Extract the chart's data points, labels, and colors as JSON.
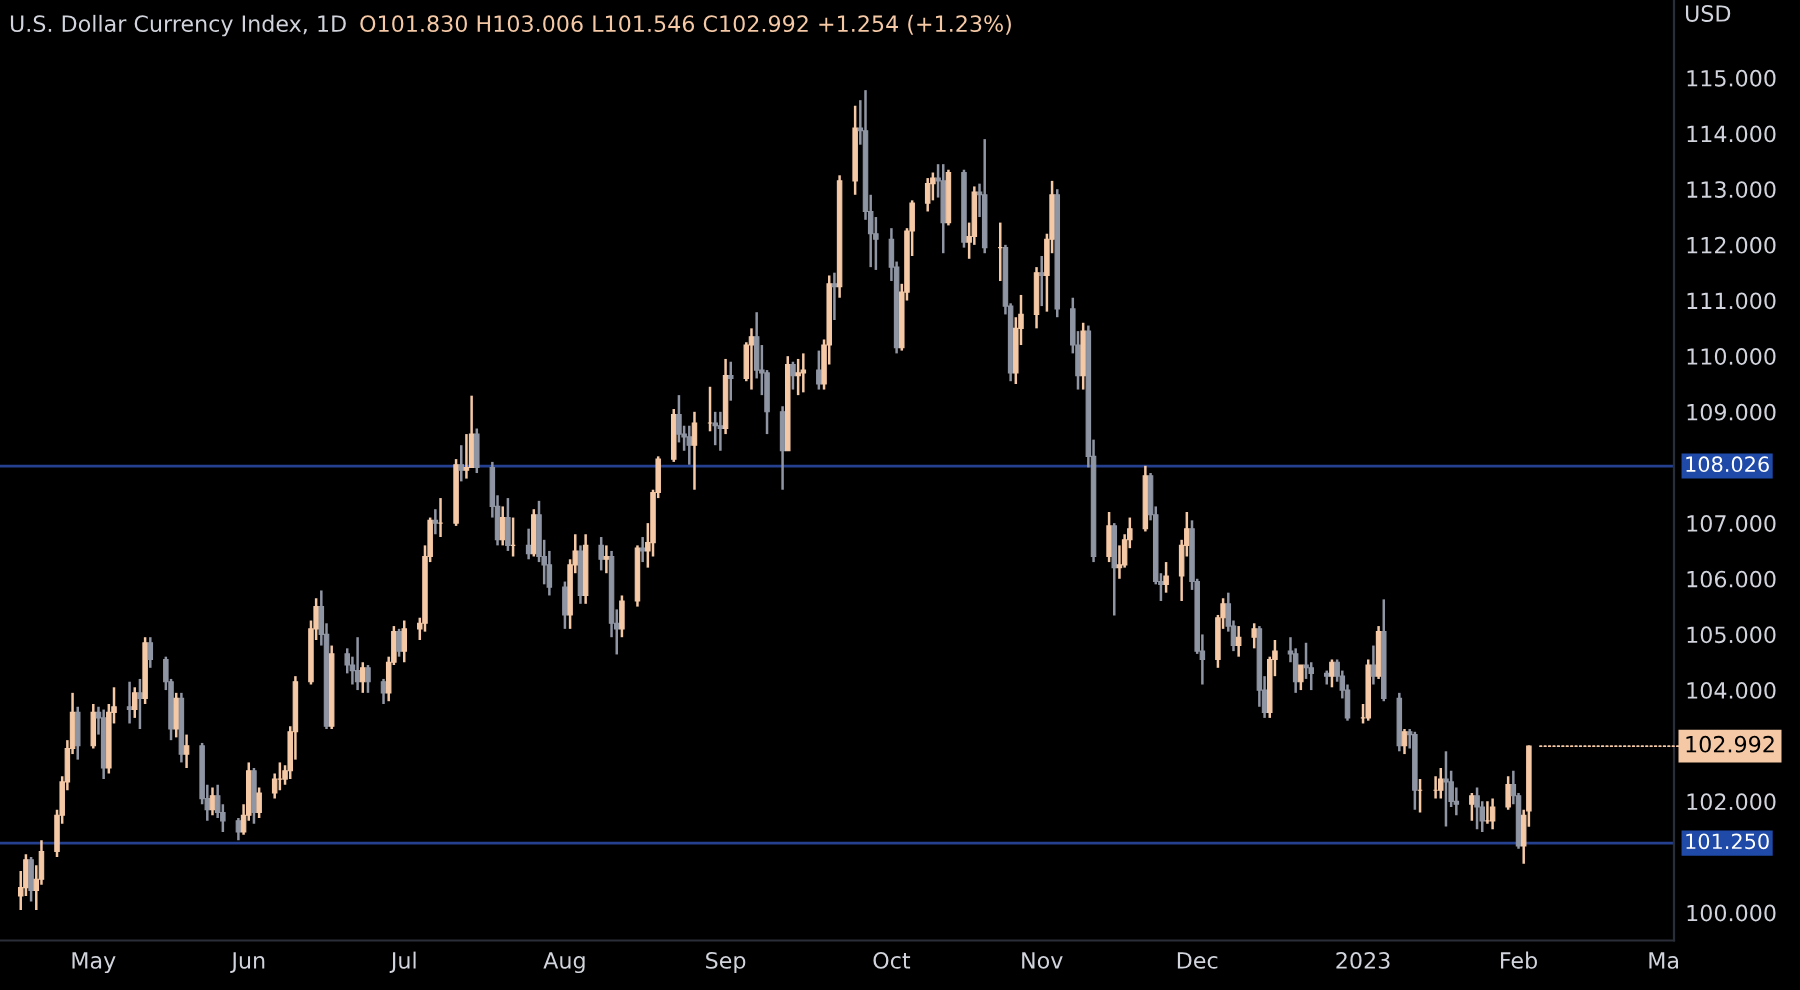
{
  "chart_data": {
    "type": "candlestick",
    "title": "U.S. Dollar Currency Index, 1D",
    "subtitle": "O101.830 H103.006 L101.546 C102.992 +1.254 (+1.23%)",
    "ylabel": "USD",
    "x": [
      "2022-04-18",
      "2022-04-19",
      "2022-04-20",
      "2022-04-21",
      "2022-04-22",
      "2022-04-25",
      "2022-04-26",
      "2022-04-27",
      "2022-04-28",
      "2022-04-29",
      "2022-05-02",
      "2022-05-03",
      "2022-05-04",
      "2022-05-05",
      "2022-05-06",
      "2022-05-09",
      "2022-05-10",
      "2022-05-11",
      "2022-05-12",
      "2022-05-13",
      "2022-05-16",
      "2022-05-17",
      "2022-05-18",
      "2022-05-19",
      "2022-05-20",
      "2022-05-23",
      "2022-05-24",
      "2022-05-25",
      "2022-05-26",
      "2022-05-27",
      "2022-05-30",
      "2022-05-31",
      "2022-06-01",
      "2022-06-02",
      "2022-06-03",
      "2022-06-06",
      "2022-06-07",
      "2022-06-08",
      "2022-06-09",
      "2022-06-10",
      "2022-06-13",
      "2022-06-14",
      "2022-06-15",
      "2022-06-16",
      "2022-06-17",
      "2022-06-20",
      "2022-06-21",
      "2022-06-22",
      "2022-06-23",
      "2022-06-24",
      "2022-06-27",
      "2022-06-28",
      "2022-06-29",
      "2022-06-30",
      "2022-07-01",
      "2022-07-04",
      "2022-07-05",
      "2022-07-06",
      "2022-07-07",
      "2022-07-08",
      "2022-07-11",
      "2022-07-12",
      "2022-07-13",
      "2022-07-14",
      "2022-07-15",
      "2022-07-18",
      "2022-07-19",
      "2022-07-20",
      "2022-07-21",
      "2022-07-22",
      "2022-07-25",
      "2022-07-26",
      "2022-07-27",
      "2022-07-28",
      "2022-07-29",
      "2022-08-01",
      "2022-08-02",
      "2022-08-03",
      "2022-08-04",
      "2022-08-05",
      "2022-08-08",
      "2022-08-09",
      "2022-08-10",
      "2022-08-11",
      "2022-08-12",
      "2022-08-15",
      "2022-08-16",
      "2022-08-17",
      "2022-08-18",
      "2022-08-19",
      "2022-08-22",
      "2022-08-23",
      "2022-08-24",
      "2022-08-25",
      "2022-08-26",
      "2022-08-29",
      "2022-08-30",
      "2022-08-31",
      "2022-09-01",
      "2022-09-02",
      "2022-09-05",
      "2022-09-06",
      "2022-09-07",
      "2022-09-08",
      "2022-09-09",
      "2022-09-12",
      "2022-09-13",
      "2022-09-14",
      "2022-09-15",
      "2022-09-16",
      "2022-09-19",
      "2022-09-20",
      "2022-09-21",
      "2022-09-22",
      "2022-09-23",
      "2022-09-26",
      "2022-09-27",
      "2022-09-28",
      "2022-09-29",
      "2022-09-30",
      "2022-10-03",
      "2022-10-04",
      "2022-10-05",
      "2022-10-06",
      "2022-10-07",
      "2022-10-10",
      "2022-10-11",
      "2022-10-12",
      "2022-10-13",
      "2022-10-14",
      "2022-10-17",
      "2022-10-18",
      "2022-10-19",
      "2022-10-20",
      "2022-10-21",
      "2022-10-24",
      "2022-10-25",
      "2022-10-26",
      "2022-10-27",
      "2022-10-28",
      "2022-10-31",
      "2022-11-01",
      "2022-11-02",
      "2022-11-03",
      "2022-11-04",
      "2022-11-07",
      "2022-11-08",
      "2022-11-09",
      "2022-11-10",
      "2022-11-11",
      "2022-11-14",
      "2022-11-15",
      "2022-11-16",
      "2022-11-17",
      "2022-11-18",
      "2022-11-21",
      "2022-11-22",
      "2022-11-23",
      "2022-11-24",
      "2022-11-25",
      "2022-11-28",
      "2022-11-29",
      "2022-11-30",
      "2022-12-01",
      "2022-12-02",
      "2022-12-05",
      "2022-12-06",
      "2022-12-07",
      "2022-12-08",
      "2022-12-09",
      "2022-12-12",
      "2022-12-13",
      "2022-12-14",
      "2022-12-15",
      "2022-12-16",
      "2022-12-19",
      "2022-12-20",
      "2022-12-21",
      "2022-12-22",
      "2022-12-23",
      "2022-12-26",
      "2022-12-27",
      "2022-12-28",
      "2022-12-29",
      "2022-12-30",
      "2023-01-02",
      "2023-01-03",
      "2023-01-04",
      "2023-01-05",
      "2023-01-06",
      "2023-01-09",
      "2023-01-10",
      "2023-01-11",
      "2023-01-12",
      "2023-01-13",
      "2023-01-16",
      "2023-01-17",
      "2023-01-18",
      "2023-01-19",
      "2023-01-20",
      "2023-01-23",
      "2023-01-24",
      "2023-01-25",
      "2023-01-26",
      "2023-01-27",
      "2023-01-30",
      "2023-01-31",
      "2023-02-01",
      "2023-02-02",
      "2023-02-03"
    ],
    "ohlc": [
      [
        100.3,
        100.75,
        100.05,
        100.45
      ],
      [
        100.45,
        101.05,
        100.3,
        100.95
      ],
      [
        100.95,
        101.0,
        100.2,
        100.4
      ],
      [
        100.4,
        100.85,
        100.05,
        100.6
      ],
      [
        100.6,
        101.3,
        100.5,
        101.1
      ],
      [
        101.1,
        101.85,
        101.0,
        101.75
      ],
      [
        101.75,
        102.45,
        101.6,
        102.35
      ],
      [
        102.35,
        103.1,
        102.2,
        102.95
      ],
      [
        102.95,
        103.95,
        102.85,
        103.6
      ],
      [
        103.6,
        103.7,
        102.75,
        103.0
      ],
      [
        103.0,
        103.75,
        102.95,
        103.6
      ],
      [
        103.6,
        103.7,
        103.2,
        103.5
      ],
      [
        103.5,
        103.65,
        102.4,
        102.6
      ],
      [
        102.6,
        103.75,
        102.5,
        103.6
      ],
      [
        103.6,
        104.05,
        103.4,
        103.7
      ],
      [
        103.7,
        104.15,
        103.4,
        103.65
      ],
      [
        103.65,
        104.05,
        103.5,
        103.95
      ],
      [
        103.95,
        104.2,
        103.3,
        103.85
      ],
      [
        103.85,
        104.95,
        103.75,
        104.85
      ],
      [
        104.85,
        104.95,
        104.4,
        104.55
      ],
      [
        104.55,
        104.6,
        104.0,
        104.15
      ],
      [
        104.15,
        104.2,
        103.1,
        103.3
      ],
      [
        103.3,
        103.95,
        103.15,
        103.85
      ],
      [
        103.85,
        103.95,
        102.7,
        102.85
      ],
      [
        102.85,
        103.2,
        102.6,
        103.0
      ],
      [
        103.0,
        103.05,
        101.95,
        102.05
      ],
      [
        102.05,
        102.3,
        101.65,
        101.85
      ],
      [
        101.85,
        102.25,
        101.75,
        102.1
      ],
      [
        102.1,
        102.3,
        101.7,
        101.8
      ],
      [
        101.8,
        101.95,
        101.45,
        101.65
      ],
      [
        101.65,
        101.7,
        101.3,
        101.45
      ],
      [
        101.45,
        101.95,
        101.4,
        101.75
      ],
      [
        101.75,
        102.7,
        101.65,
        102.55
      ],
      [
        102.55,
        102.6,
        101.6,
        101.8
      ],
      [
        101.8,
        102.25,
        101.7,
        102.15
      ],
      [
        102.15,
        102.5,
        102.05,
        102.4
      ],
      [
        102.4,
        102.7,
        102.2,
        102.4
      ],
      [
        102.4,
        102.65,
        102.3,
        102.55
      ],
      [
        102.55,
        103.35,
        102.4,
        103.25
      ],
      [
        103.25,
        104.25,
        102.75,
        104.15
      ],
      [
        104.15,
        105.25,
        104.1,
        105.1
      ],
      [
        105.1,
        105.65,
        104.9,
        105.5
      ],
      [
        105.5,
        105.79,
        104.8,
        105.0
      ],
      [
        105.0,
        105.2,
        103.3,
        103.35
      ],
      [
        103.35,
        104.8,
        103.3,
        104.65
      ],
      [
        104.65,
        104.75,
        104.3,
        104.45
      ],
      [
        104.45,
        104.6,
        104.1,
        104.35
      ],
      [
        104.35,
        104.95,
        104.0,
        104.15
      ],
      [
        104.15,
        104.5,
        103.95,
        104.4
      ],
      [
        104.4,
        104.45,
        103.95,
        104.15
      ],
      [
        104.15,
        104.2,
        103.75,
        103.95
      ],
      [
        103.95,
        104.6,
        103.8,
        104.5
      ],
      [
        104.5,
        105.15,
        104.45,
        105.05
      ],
      [
        105.05,
        105.1,
        104.6,
        104.7
      ],
      [
        104.7,
        105.25,
        104.5,
        105.1
      ],
      [
        105.1,
        105.3,
        104.9,
        105.2
      ],
      [
        105.2,
        106.6,
        105.05,
        106.4
      ],
      [
        106.4,
        107.1,
        106.3,
        107.05
      ],
      [
        107.05,
        107.25,
        106.8,
        107.0
      ],
      [
        107.0,
        107.45,
        106.75,
        107.0
      ],
      [
        107.0,
        108.15,
        106.95,
        108.05
      ],
      [
        108.05,
        108.4,
        107.75,
        107.95
      ],
      [
        107.95,
        108.6,
        107.8,
        108.0
      ],
      [
        108.0,
        109.29,
        108.0,
        108.6
      ],
      [
        108.6,
        108.7,
        107.9,
        108.0
      ],
      [
        108.0,
        108.1,
        107.1,
        107.3
      ],
      [
        107.3,
        107.5,
        106.6,
        106.7
      ],
      [
        106.7,
        107.3,
        106.6,
        107.1
      ],
      [
        107.1,
        107.45,
        106.5,
        106.6
      ],
      [
        106.6,
        107.1,
        106.4,
        106.6
      ],
      [
        106.6,
        106.9,
        106.35,
        106.45
      ],
      [
        106.45,
        107.25,
        106.4,
        107.15
      ],
      [
        107.15,
        107.4,
        106.3,
        106.4
      ],
      [
        106.4,
        106.7,
        105.9,
        106.25
      ],
      [
        106.25,
        106.5,
        105.7,
        105.85
      ],
      [
        105.85,
        105.95,
        105.1,
        105.35
      ],
      [
        105.35,
        106.35,
        105.1,
        106.25
      ],
      [
        106.25,
        106.8,
        106.1,
        106.5
      ],
      [
        106.5,
        106.6,
        105.55,
        105.7
      ],
      [
        105.7,
        106.8,
        105.55,
        106.6
      ],
      [
        106.6,
        106.75,
        106.15,
        106.35
      ],
      [
        106.35,
        106.6,
        106.1,
        106.4
      ],
      [
        106.4,
        106.5,
        104.95,
        105.2
      ],
      [
        105.2,
        105.45,
        104.64,
        105.1
      ],
      [
        105.1,
        105.7,
        104.95,
        105.6
      ],
      [
        105.6,
        106.6,
        105.5,
        106.55
      ],
      [
        106.55,
        106.75,
        106.3,
        106.5
      ],
      [
        106.5,
        107.0,
        106.2,
        106.65
      ],
      [
        106.65,
        107.6,
        106.4,
        107.55
      ],
      [
        107.55,
        108.2,
        107.45,
        108.15
      ],
      [
        108.15,
        109.05,
        108.1,
        108.95
      ],
      [
        108.95,
        109.3,
        108.45,
        108.6
      ],
      [
        108.6,
        108.75,
        108.3,
        108.55
      ],
      [
        108.55,
        108.75,
        108.05,
        108.4
      ],
      [
        108.4,
        109.0,
        107.6,
        108.8
      ],
      [
        108.8,
        109.45,
        108.65,
        108.8
      ],
      [
        108.8,
        109.0,
        108.4,
        108.75
      ],
      [
        108.75,
        109.0,
        108.3,
        108.7
      ],
      [
        108.7,
        109.95,
        108.6,
        109.65
      ],
      [
        109.65,
        109.9,
        109.2,
        109.6
      ],
      [
        109.6,
        110.25,
        109.55,
        110.2
      ],
      [
        110.2,
        110.5,
        109.4,
        110.35
      ],
      [
        110.35,
        110.79,
        109.6,
        109.75
      ],
      [
        109.75,
        110.2,
        109.3,
        109.7
      ],
      [
        109.7,
        109.75,
        108.6,
        109.0
      ],
      [
        109.0,
        109.1,
        107.6,
        108.3
      ],
      [
        108.3,
        110.0,
        108.3,
        109.85
      ],
      [
        109.85,
        109.9,
        109.4,
        109.65
      ],
      [
        109.65,
        109.95,
        109.3,
        109.7
      ],
      [
        109.7,
        110.05,
        109.35,
        109.75
      ],
      [
        109.75,
        110.1,
        109.4,
        109.5
      ],
      [
        109.5,
        110.3,
        109.4,
        110.2
      ],
      [
        110.2,
        111.45,
        109.85,
        111.3
      ],
      [
        111.3,
        111.5,
        110.65,
        111.25
      ],
      [
        111.25,
        113.25,
        111.05,
        113.15
      ],
      [
        113.15,
        114.5,
        112.9,
        114.1
      ],
      [
        114.1,
        114.6,
        113.8,
        114.05
      ],
      [
        114.05,
        114.78,
        112.45,
        112.6
      ],
      [
        112.6,
        112.9,
        111.6,
        112.2
      ],
      [
        112.2,
        112.5,
        111.55,
        112.1
      ],
      [
        112.1,
        112.3,
        111.35,
        111.6
      ],
      [
        111.6,
        111.7,
        110.05,
        110.15
      ],
      [
        110.15,
        111.3,
        110.1,
        111.15
      ],
      [
        111.15,
        112.3,
        111.0,
        112.25
      ],
      [
        112.25,
        112.8,
        111.8,
        112.75
      ],
      [
        112.75,
        113.2,
        112.6,
        113.1
      ],
      [
        113.1,
        113.3,
        112.8,
        113.2
      ],
      [
        113.2,
        113.45,
        112.85,
        113.15
      ],
      [
        113.15,
        113.45,
        111.85,
        112.4
      ],
      [
        112.4,
        113.35,
        112.35,
        113.3
      ],
      [
        113.3,
        113.35,
        111.95,
        112.05
      ],
      [
        112.05,
        112.4,
        111.75,
        112.15
      ],
      [
        112.15,
        113.05,
        112.0,
        112.95
      ],
      [
        112.95,
        113.1,
        112.5,
        112.9
      ],
      [
        112.9,
        113.9,
        111.85,
        111.95
      ],
      [
        111.95,
        112.4,
        111.35,
        111.95
      ],
      [
        111.95,
        112.0,
        110.75,
        110.9
      ],
      [
        110.9,
        110.95,
        109.55,
        109.7
      ],
      [
        109.7,
        110.7,
        109.5,
        110.5
      ],
      [
        110.5,
        111.1,
        110.2,
        110.75
      ],
      [
        110.75,
        111.6,
        110.5,
        111.5
      ],
      [
        111.5,
        111.8,
        110.9,
        111.45
      ],
      [
        111.45,
        112.2,
        110.8,
        112.1
      ],
      [
        112.1,
        113.15,
        111.85,
        112.9
      ],
      [
        112.9,
        113.0,
        110.7,
        110.85
      ],
      [
        110.85,
        111.05,
        110.05,
        110.2
      ],
      [
        110.2,
        110.45,
        109.4,
        109.65
      ],
      [
        109.65,
        110.6,
        109.4,
        110.45
      ],
      [
        110.45,
        110.55,
        108.0,
        108.2
      ],
      [
        108.2,
        108.5,
        106.3,
        106.4
      ],
      [
        106.4,
        107.2,
        106.3,
        106.95
      ],
      [
        106.95,
        107.0,
        105.34,
        106.2
      ],
      [
        106.2,
        106.6,
        106.0,
        106.25
      ],
      [
        106.25,
        106.8,
        106.2,
        106.7
      ],
      [
        106.7,
        107.1,
        106.55,
        106.9
      ],
      [
        106.9,
        108.03,
        106.85,
        107.85
      ],
      [
        107.85,
        107.9,
        107.05,
        107.15
      ],
      [
        107.15,
        107.3,
        105.9,
        105.95
      ],
      [
        105.95,
        106.1,
        105.6,
        105.9
      ],
      [
        105.9,
        106.3,
        105.75,
        106.05
      ],
      [
        106.05,
        106.7,
        105.6,
        106.6
      ],
      [
        106.6,
        107.2,
        106.4,
        106.9
      ],
      [
        106.9,
        107.05,
        105.8,
        105.95
      ],
      [
        105.95,
        106.0,
        104.65,
        104.7
      ],
      [
        104.7,
        105.0,
        104.1,
        104.55
      ],
      [
        104.55,
        105.35,
        104.4,
        105.3
      ],
      [
        105.3,
        105.65,
        105.1,
        105.55
      ],
      [
        105.55,
        105.75,
        105.05,
        105.15
      ],
      [
        105.15,
        105.25,
        104.7,
        104.8
      ],
      [
        104.8,
        105.15,
        104.6,
        104.95
      ],
      [
        104.95,
        105.2,
        104.75,
        105.1
      ],
      [
        105.1,
        105.15,
        103.7,
        104.0
      ],
      [
        104.0,
        104.25,
        103.5,
        103.6
      ],
      [
        103.6,
        104.6,
        103.5,
        104.55
      ],
      [
        104.55,
        104.9,
        104.25,
        104.7
      ],
      [
        104.7,
        104.95,
        104.5,
        104.65
      ],
      [
        104.65,
        104.75,
        103.95,
        104.15
      ],
      [
        104.15,
        104.45,
        104.0,
        104.45
      ],
      [
        104.45,
        104.85,
        104.2,
        104.4
      ],
      [
        104.4,
        104.5,
        104.0,
        104.3
      ],
      [
        104.3,
        104.35,
        104.1,
        104.25
      ],
      [
        104.25,
        104.55,
        104.05,
        104.5
      ],
      [
        104.5,
        104.55,
        104.15,
        104.25
      ],
      [
        104.25,
        104.35,
        103.85,
        104.0
      ],
      [
        104.0,
        104.1,
        103.45,
        103.5
      ],
      [
        103.5,
        103.75,
        103.4,
        103.5
      ],
      [
        103.5,
        104.55,
        103.45,
        104.45
      ],
      [
        104.45,
        104.8,
        104.1,
        104.25
      ],
      [
        104.25,
        105.15,
        104.2,
        105.05
      ],
      [
        105.05,
        105.63,
        103.8,
        103.85
      ],
      [
        103.85,
        103.95,
        102.9,
        103.0
      ],
      [
        103.0,
        103.3,
        102.85,
        103.25
      ],
      [
        103.25,
        103.3,
        102.95,
        103.2
      ],
      [
        103.2,
        103.25,
        101.85,
        102.2
      ],
      [
        102.2,
        102.4,
        101.8,
        102.2
      ],
      [
        102.2,
        102.45,
        102.05,
        102.2
      ],
      [
        102.2,
        102.6,
        102.05,
        102.4
      ],
      [
        102.4,
        102.9,
        101.55,
        102.35
      ],
      [
        102.35,
        102.55,
        101.9,
        102.0
      ],
      [
        102.0,
        102.25,
        101.75,
        101.95
      ],
      [
        101.95,
        102.15,
        101.65,
        102.1
      ],
      [
        102.1,
        102.25,
        101.5,
        101.9
      ],
      [
        101.9,
        102.0,
        101.45,
        101.65
      ],
      [
        101.65,
        102.0,
        101.6,
        101.65
      ],
      [
        101.65,
        102.05,
        101.5,
        101.9
      ],
      [
        101.9,
        102.45,
        101.85,
        102.3
      ],
      [
        102.3,
        102.55,
        101.95,
        102.1
      ],
      [
        102.1,
        102.15,
        101.15,
        101.2
      ],
      [
        101.2,
        101.85,
        100.88,
        101.75
      ],
      [
        101.83,
        103.006,
        101.546,
        102.992
      ]
    ],
    "colors": [
      "#f5c9a6",
      "#f5c9a6",
      "#8f95a3",
      "#f5c9a6",
      "#f5c9a6",
      "#f5c9a6",
      "#f5c9a6",
      "#f5c9a6",
      "#f5c9a6",
      "#8f95a3",
      "#f5c9a6",
      "#8f95a3",
      "#8f95a3",
      "#f5c9a6",
      "#f5c9a6",
      "#8f95a3",
      "#f5c9a6",
      "#8f95a3",
      "#f5c9a6",
      "#8f95a3",
      "#8f95a3",
      "#8f95a3",
      "#f5c9a6",
      "#8f95a3",
      "#f5c9a6",
      "#8f95a3",
      "#8f95a3",
      "#f5c9a6",
      "#8f95a3",
      "#8f95a3",
      "#8f95a3",
      "#f5c9a6",
      "#f5c9a6",
      "#8f95a3",
      "#f5c9a6",
      "#f5c9a6",
      "#f5c9a6",
      "#f5c9a6",
      "#f5c9a6",
      "#f5c9a6",
      "#f5c9a6",
      "#f5c9a6",
      "#8f95a3",
      "#8f95a3",
      "#f5c9a6",
      "#8f95a3",
      "#8f95a3",
      "#8f95a3",
      "#f5c9a6",
      "#8f95a3",
      "#8f95a3",
      "#f5c9a6",
      "#f5c9a6",
      "#8f95a3",
      "#f5c9a6",
      "#f5c9a6",
      "#f5c9a6",
      "#f5c9a6",
      "#8f95a3",
      "#f5c9a6",
      "#f5c9a6",
      "#8f95a3",
      "#f5c9a6",
      "#f5c9a6",
      "#8f95a3",
      "#8f95a3",
      "#8f95a3",
      "#f5c9a6",
      "#8f95a3",
      "#f5c9a6",
      "#8f95a3",
      "#f5c9a6",
      "#8f95a3",
      "#8f95a3",
      "#8f95a3",
      "#8f95a3",
      "#f5c9a6",
      "#f5c9a6",
      "#8f95a3",
      "#f5c9a6",
      "#8f95a3",
      "#f5c9a6",
      "#8f95a3",
      "#8f95a3",
      "#f5c9a6",
      "#f5c9a6",
      "#8f95a3",
      "#f5c9a6",
      "#f5c9a6",
      "#f5c9a6",
      "#f5c9a6",
      "#8f95a3",
      "#8f95a3",
      "#8f95a3",
      "#f5c9a6",
      "#f5c9a6",
      "#8f95a3",
      "#8f95a3",
      "#f5c9a6",
      "#8f95a3",
      "#f5c9a6",
      "#f5c9a6",
      "#8f95a3",
      "#8f95a3",
      "#8f95a3",
      "#8f95a3",
      "#f5c9a6",
      "#8f95a3",
      "#f5c9a6",
      "#f5c9a6",
      "#8f95a3",
      "#f5c9a6",
      "#f5c9a6",
      "#8f95a3",
      "#f5c9a6",
      "#f5c9a6",
      "#8f95a3",
      "#8f95a3",
      "#8f95a3",
      "#8f95a3",
      "#8f95a3",
      "#8f95a3",
      "#f5c9a6",
      "#f5c9a6",
      "#f5c9a6",
      "#f5c9a6",
      "#f5c9a6",
      "#8f95a3",
      "#8f95a3",
      "#f5c9a6",
      "#8f95a3",
      "#f5c9a6",
      "#f5c9a6",
      "#8f95a3",
      "#8f95a3",
      "#f5c9a6",
      "#8f95a3",
      "#8f95a3",
      "#f5c9a6",
      "#f5c9a6",
      "#f5c9a6",
      "#8f95a3",
      "#f5c9a6",
      "#f5c9a6",
      "#8f95a3",
      "#8f95a3",
      "#8f95a3",
      "#f5c9a6",
      "#8f95a3",
      "#8f95a3",
      "#f5c9a6",
      "#8f95a3",
      "#f5c9a6",
      "#f5c9a6",
      "#f5c9a6",
      "#f5c9a6",
      "#8f95a3",
      "#8f95a3",
      "#8f95a3",
      "#f5c9a6",
      "#f5c9a6",
      "#f5c9a6",
      "#8f95a3",
      "#8f95a3",
      "#8f95a3",
      "#f5c9a6",
      "#f5c9a6",
      "#8f95a3",
      "#8f95a3",
      "#f5c9a6",
      "#f5c9a6",
      "#8f95a3",
      "#8f95a3",
      "#f5c9a6",
      "#f5c9a6",
      "#8f95a3",
      "#8f95a3",
      "#f5c9a6",
      "#8f95a3",
      "#8f95a3",
      "#8f95a3",
      "#f5c9a6",
      "#8f95a3",
      "#8f95a3",
      "#8f95a3",
      "#f5c9a6",
      "#f5c9a6",
      "#8f95a3",
      "#f5c9a6",
      "#8f95a3",
      "#8f95a3",
      "#f5c9a6",
      "#8f95a3",
      "#8f95a3",
      "#f5c9a6",
      "#f5c9a6",
      "#f5c9a6",
      "#8f95a3",
      "#8f95a3",
      "#8f95a3",
      "#f5c9a6",
      "#8f95a3",
      "#8f95a3",
      "#f5c9a6",
      "#f5c9a6",
      "#f5c9a6",
      "#8f95a3",
      "#8f95a3",
      "#f5c9a6",
      "#f5c9a6"
    ],
    "xlim": [
      "2022-04-14",
      "2023-03-03"
    ],
    "xticks": [
      {
        "value": "2022-05-02",
        "label": "May"
      },
      {
        "value": "2022-06-01",
        "label": "Jun"
      },
      {
        "value": "2022-07-01",
        "label": "Jul"
      },
      {
        "value": "2022-08-01",
        "label": "Aug"
      },
      {
        "value": "2022-09-01",
        "label": "Sep"
      },
      {
        "value": "2022-10-03",
        "label": "Oct"
      },
      {
        "value": "2022-11-01",
        "label": "Nov"
      },
      {
        "value": "2022-12-01",
        "label": "Dec"
      },
      {
        "value": "2023-01-02",
        "label": "2023"
      },
      {
        "value": "2023-02-01",
        "label": "Feb"
      },
      {
        "value": "2023-03-01",
        "label": "Ma"
      }
    ],
    "ylim": [
      99.5,
      116.4
    ],
    "yticks": [
      {
        "value": 100,
        "label": "100.000"
      },
      {
        "value": 102,
        "label": "102.000"
      },
      {
        "value": 104,
        "label": "104.000"
      },
      {
        "value": 105,
        "label": "105.000"
      },
      {
        "value": 106,
        "label": "106.000"
      },
      {
        "value": 107,
        "label": "107.000"
      },
      {
        "value": 109,
        "label": "109.000"
      },
      {
        "value": 110,
        "label": "110.000"
      },
      {
        "value": 111,
        "label": "111.000"
      },
      {
        "value": 112,
        "label": "112.000"
      },
      {
        "value": 113,
        "label": "113.000"
      },
      {
        "value": 114,
        "label": "114.000"
      },
      {
        "value": 115,
        "label": "115.000"
      }
    ],
    "ref_lines": [
      {
        "axis": "y",
        "value": 108.026,
        "label": "108.026",
        "color": "#24408e"
      },
      {
        "axis": "y",
        "value": 101.25,
        "label": "101.250",
        "color": "#24408e"
      }
    ],
    "annotations": [
      {
        "text": "102.992",
        "x": "2023-02-03",
        "y": 102.992
      }
    ],
    "grid": false,
    "legend": false
  }
}
